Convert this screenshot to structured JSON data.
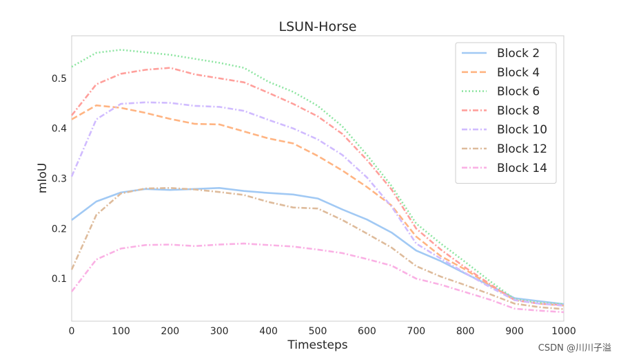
{
  "watermark": "CSDN @川川子溢",
  "chart_data": {
    "type": "line",
    "title": "LSUN-Horse",
    "xlabel": "Timesteps",
    "ylabel": "mIoU",
    "xlim": [
      0,
      1000
    ],
    "ylim": [
      0.015,
      0.585
    ],
    "xticks": [
      0,
      100,
      200,
      300,
      400,
      500,
      600,
      700,
      800,
      900,
      1000
    ],
    "yticks": [
      0.1,
      0.2,
      0.3,
      0.4,
      0.5
    ],
    "ytick_labels": [
      "0.1",
      "0.2",
      "0.3",
      "0.4",
      "0.5"
    ],
    "grid": false,
    "legend_position": "top-right",
    "x": [
      0,
      50,
      100,
      150,
      200,
      250,
      300,
      350,
      400,
      450,
      500,
      550,
      600,
      650,
      700,
      750,
      800,
      850,
      900,
      950,
      1000
    ],
    "series": [
      {
        "name": "Block 2",
        "color": "#a1c9f4",
        "dash": "solid",
        "values": [
          0.217,
          0.254,
          0.272,
          0.279,
          0.277,
          0.279,
          0.281,
          0.275,
          0.271,
          0.268,
          0.26,
          0.238,
          0.218,
          0.192,
          0.156,
          0.135,
          0.11,
          0.086,
          0.061,
          0.055,
          0.049
        ]
      },
      {
        "name": "Block 4",
        "color": "#ffb482",
        "dash": "dashed",
        "values": [
          0.418,
          0.446,
          0.441,
          0.431,
          0.419,
          0.409,
          0.408,
          0.394,
          0.38,
          0.37,
          0.345,
          0.316,
          0.283,
          0.246,
          0.184,
          0.145,
          0.118,
          0.087,
          0.057,
          0.05,
          0.046
        ]
      },
      {
        "name": "Block 6",
        "color": "#8de5a1",
        "dash": "dotted",
        "values": [
          0.523,
          0.551,
          0.557,
          0.552,
          0.547,
          0.539,
          0.531,
          0.521,
          0.493,
          0.473,
          0.445,
          0.404,
          0.347,
          0.285,
          0.21,
          0.17,
          0.133,
          0.095,
          0.059,
          0.052,
          0.049
        ]
      },
      {
        "name": "Block 8",
        "color": "#ff9f9b",
        "dash": "dashdot",
        "values": [
          0.426,
          0.488,
          0.509,
          0.517,
          0.521,
          0.508,
          0.5,
          0.492,
          0.471,
          0.449,
          0.424,
          0.389,
          0.337,
          0.278,
          0.2,
          0.158,
          0.122,
          0.089,
          0.057,
          0.05,
          0.047
        ]
      },
      {
        "name": "Block 10",
        "color": "#d0bbff",
        "dash": "dashdot",
        "values": [
          0.304,
          0.418,
          0.449,
          0.452,
          0.451,
          0.445,
          0.443,
          0.435,
          0.417,
          0.4,
          0.378,
          0.347,
          0.302,
          0.244,
          0.17,
          0.14,
          0.111,
          0.083,
          0.057,
          0.05,
          0.046
        ]
      },
      {
        "name": "Block 12",
        "color": "#debb9b",
        "dash": "dashdot",
        "values": [
          0.118,
          0.227,
          0.27,
          0.28,
          0.281,
          0.278,
          0.273,
          0.267,
          0.253,
          0.242,
          0.24,
          0.217,
          0.19,
          0.162,
          0.125,
          0.104,
          0.087,
          0.069,
          0.05,
          0.043,
          0.039
        ]
      },
      {
        "name": "Block 14",
        "color": "#fab0e4",
        "dash": "dashdot",
        "values": [
          0.074,
          0.138,
          0.16,
          0.167,
          0.168,
          0.165,
          0.168,
          0.17,
          0.167,
          0.164,
          0.158,
          0.151,
          0.139,
          0.126,
          0.1,
          0.088,
          0.073,
          0.058,
          0.04,
          0.036,
          0.033
        ]
      }
    ]
  }
}
